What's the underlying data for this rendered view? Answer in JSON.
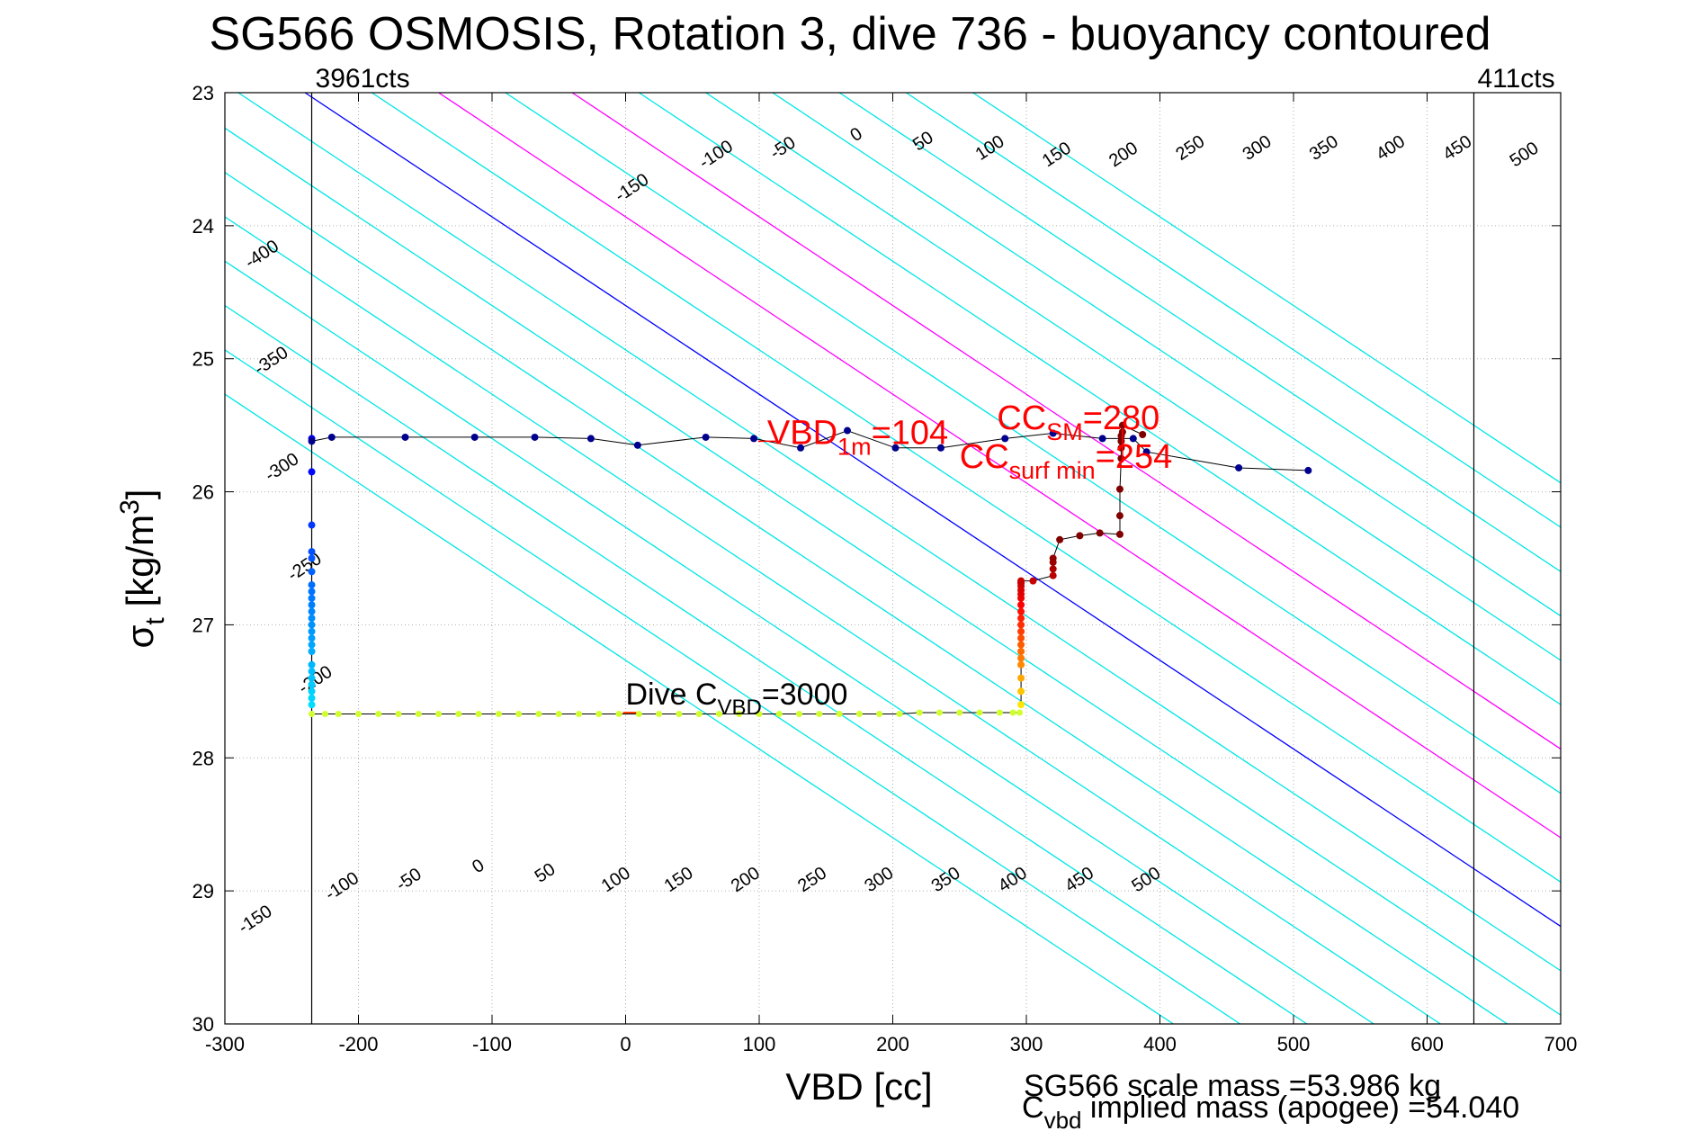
{
  "chart_data": {
    "type": "scatter",
    "title": "SG566 OSMOSIS, Rotation 3, dive 736 - buoyancy contoured",
    "xlabel": "VBD [cc]",
    "ylabel": {
      "base": "σ",
      "sub": "t",
      "unit_prefix": " [kg/m",
      "sup": "3",
      "unit_suffix": "]"
    },
    "xlim": [
      -300,
      700
    ],
    "ylim": [
      23,
      30
    ],
    "y_reversed": true,
    "grid": true,
    "x_ticks": [
      -300,
      -200,
      -100,
      0,
      100,
      200,
      300,
      400,
      500,
      600,
      700
    ],
    "y_ticks": [
      23,
      24,
      25,
      26,
      27,
      28,
      29,
      30
    ],
    "limit_lines": {
      "min_vbd": -235,
      "max_vbd": 635,
      "min_label": "3961cts",
      "max_label": "411cts"
    },
    "contours": {
      "top_intercepts": {
        "-400": -640,
        "-350": -590,
        "-300": -540,
        "-250": -490,
        "-200": -440,
        "-150": -390,
        "-100": -340,
        "-50": -290,
        "0": -240,
        "50": -190,
        "100": -140,
        "150": -90,
        "200": -40,
        "250": 10,
        "300": 60,
        "350": 110,
        "400": 160,
        "450": 210,
        "500": 260
      },
      "slope_cc_per_sigma": 150.0,
      "top_labels": [
        {
          "value": "-400",
          "x": -270,
          "y": 24.25
        },
        {
          "value": "-350",
          "x": -263,
          "y": 25.05
        },
        {
          "value": "-300",
          "x": -255,
          "y": 25.85
        },
        {
          "value": "-250",
          "x": -238,
          "y": 26.6
        },
        {
          "value": "-200",
          "x": -230,
          "y": 27.45
        },
        {
          "value": "-150",
          "x": 7,
          "y": 23.75
        },
        {
          "value": "-100",
          "x": 70,
          "y": 23.5
        },
        {
          "value": "-50",
          "x": 120,
          "y": 23.45
        },
        {
          "value": "0",
          "x": 175,
          "y": 23.35
        },
        {
          "value": "50",
          "x": 225,
          "y": 23.4
        },
        {
          "value": "100",
          "x": 275,
          "y": 23.45
        },
        {
          "value": "150",
          "x": 325,
          "y": 23.5
        },
        {
          "value": "200",
          "x": 375,
          "y": 23.5
        },
        {
          "value": "250",
          "x": 425,
          "y": 23.45
        },
        {
          "value": "300",
          "x": 475,
          "y": 23.45
        },
        {
          "value": "350",
          "x": 525,
          "y": 23.45
        },
        {
          "value": "400",
          "x": 575,
          "y": 23.45
        },
        {
          "value": "450",
          "x": 625,
          "y": 23.45
        },
        {
          "value": "500",
          "x": 675,
          "y": 23.5
        }
      ],
      "bottom_labels": [
        {
          "value": "-150",
          "x": -275,
          "y": 29.25
        },
        {
          "value": "-100",
          "x": -210,
          "y": 29.0
        },
        {
          "value": "-50",
          "x": -160,
          "y": 28.95
        },
        {
          "value": "0",
          "x": -108,
          "y": 28.85
        },
        {
          "value": "50",
          "x": -58,
          "y": 28.9
        },
        {
          "value": "100",
          "x": -5,
          "y": 28.95
        },
        {
          "value": "150",
          "x": 42,
          "y": 28.95
        },
        {
          "value": "200",
          "x": 92,
          "y": 28.95
        },
        {
          "value": "250",
          "x": 142,
          "y": 28.95
        },
        {
          "value": "300",
          "x": 192,
          "y": 28.95
        },
        {
          "value": "350",
          "x": 242,
          "y": 28.95
        },
        {
          "value": "400",
          "x": 292,
          "y": 28.95
        },
        {
          "value": "450",
          "x": 342,
          "y": 28.95
        },
        {
          "value": "500",
          "x": 392,
          "y": 28.95
        }
      ],
      "zero_value": "0",
      "highlight_values": [
        "100",
        "200"
      ],
      "color_default": "#00e6e6",
      "color_zero": "#0000ff",
      "color_highlight": "#ff00ff"
    },
    "series": [
      {
        "kind": "dive_descent",
        "x": [
          -235,
          -235,
          -235,
          -235,
          -235,
          -235,
          -235,
          -235,
          -235,
          -235,
          -235,
          -235,
          -235,
          -235,
          -235,
          -235,
          -235,
          -235,
          -235,
          -235,
          -235,
          -235,
          -235,
          -235
        ],
        "y": [
          25.6,
          25.85,
          26.25,
          26.45,
          26.5,
          26.6,
          26.7,
          26.75,
          26.8,
          26.85,
          26.9,
          26.95,
          27.0,
          27.05,
          27.1,
          27.15,
          27.2,
          27.3,
          27.35,
          27.4,
          27.45,
          27.5,
          27.55,
          27.6
        ]
      },
      {
        "kind": "deep_horizontal",
        "x": [
          -235,
          -225,
          -215,
          -200,
          -185,
          -170,
          -155,
          -140,
          -125,
          -110,
          -95,
          -80,
          -65,
          -50,
          -35,
          -20,
          -5,
          10,
          25,
          40,
          55,
          70,
          85,
          100,
          115,
          130,
          145,
          160,
          175,
          190,
          205,
          220,
          235,
          250,
          265,
          280,
          290,
          295
        ],
        "y": [
          27.67,
          27.67,
          27.67,
          27.67,
          27.67,
          27.67,
          27.67,
          27.67,
          27.67,
          27.67,
          27.67,
          27.67,
          27.67,
          27.67,
          27.67,
          27.67,
          27.67,
          27.67,
          27.67,
          27.67,
          27.67,
          27.67,
          27.67,
          27.67,
          27.67,
          27.67,
          27.67,
          27.67,
          27.67,
          27.67,
          27.67,
          27.66,
          27.66,
          27.66,
          27.66,
          27.66,
          27.66,
          27.66
        ]
      },
      {
        "kind": "climb",
        "x": [
          296,
          296,
          296,
          296,
          296,
          296,
          296,
          296,
          296,
          296,
          296,
          296,
          296,
          296,
          296,
          296,
          296,
          296,
          296,
          296,
          305,
          320,
          320,
          320,
          320,
          325,
          340,
          355,
          370,
          370,
          370,
          371,
          371,
          371,
          371,
          372,
          372,
          387
        ],
        "y": [
          27.6,
          27.5,
          27.4,
          27.3,
          27.25,
          27.2,
          27.15,
          27.1,
          27.05,
          27.0,
          26.95,
          26.9,
          26.85,
          26.8,
          26.77,
          26.74,
          26.71,
          26.69,
          26.68,
          26.67,
          26.67,
          26.63,
          26.58,
          26.53,
          26.5,
          26.36,
          26.33,
          26.31,
          26.32,
          26.18,
          25.98,
          25.75,
          25.67,
          25.62,
          25.58,
          25.55,
          25.5,
          25.57
        ]
      },
      {
        "kind": "surface",
        "x": [
          -235,
          -220,
          -165,
          -113,
          -68,
          -26,
          9,
          60,
          96,
          131,
          166,
          202,
          236,
          284,
          320,
          357,
          380,
          390,
          459,
          511
        ],
        "y": [
          25.62,
          25.59,
          25.59,
          25.59,
          25.59,
          25.6,
          25.65,
          25.59,
          25.6,
          25.67,
          25.54,
          25.67,
          25.67,
          25.6,
          25.56,
          25.6,
          25.6,
          25.7,
          25.82,
          25.84
        ]
      }
    ],
    "annotations": {
      "vbd_1m": {
        "main": "VBD",
        "sub": "1m",
        "tail": "=104",
        "x": 106,
        "y": 25.64
      },
      "cc_sm": {
        "main": "CC",
        "sub": "SM",
        "tail": "=280",
        "x": 278,
        "y": 25.53
      },
      "cc_surf": {
        "main": "CC",
        "sub": "surf min",
        "tail": "=254",
        "x": 250,
        "y": 25.82
      },
      "dive_cvbd": {
        "main": "Dive C",
        "sub": "VBD",
        "tail": "=3000",
        "x": 0,
        "y": 27.6
      },
      "footer_scale_mass": "SG566 scale mass =53.986 kg",
      "footer_implied": {
        "main": "C",
        "sub": "vbd",
        "tail": " implied mass (apogee) =54.040"
      }
    }
  }
}
